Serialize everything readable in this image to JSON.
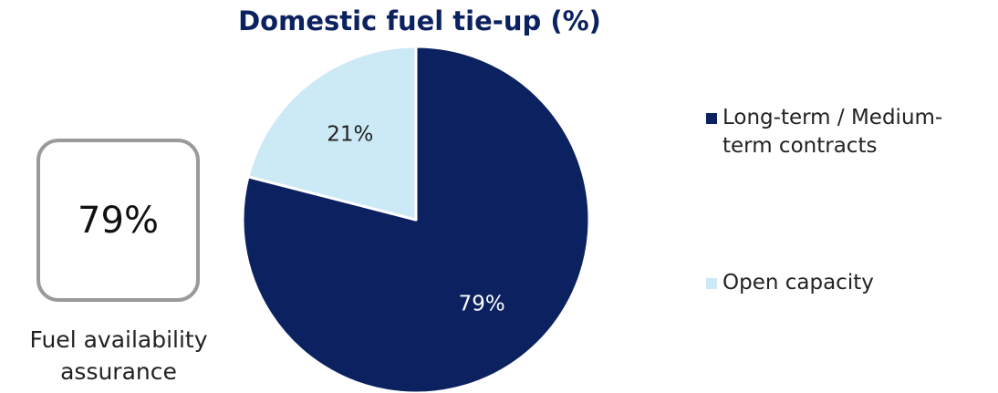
{
  "chart_data": {
    "type": "pie",
    "title": "Domestic fuel tie-up (%)",
    "categories": [
      "Long-term / Medium-term contracts",
      "Open capacity"
    ],
    "values": [
      79,
      21
    ],
    "data_labels": [
      "79%",
      "21%"
    ],
    "colors": [
      "#0b2160",
      "#cce9f6"
    ],
    "legend": {
      "position": "right",
      "entries": [
        {
          "line1": "Long-term / Medium-",
          "line2": "term contracts",
          "color": "#0b2160"
        },
        {
          "line1": "Open capacity",
          "line2": "",
          "color": "#cce9f6"
        }
      ]
    }
  },
  "kpi": {
    "value": "79%",
    "label_line1": "Fuel availability",
    "label_line2": "assurance"
  }
}
